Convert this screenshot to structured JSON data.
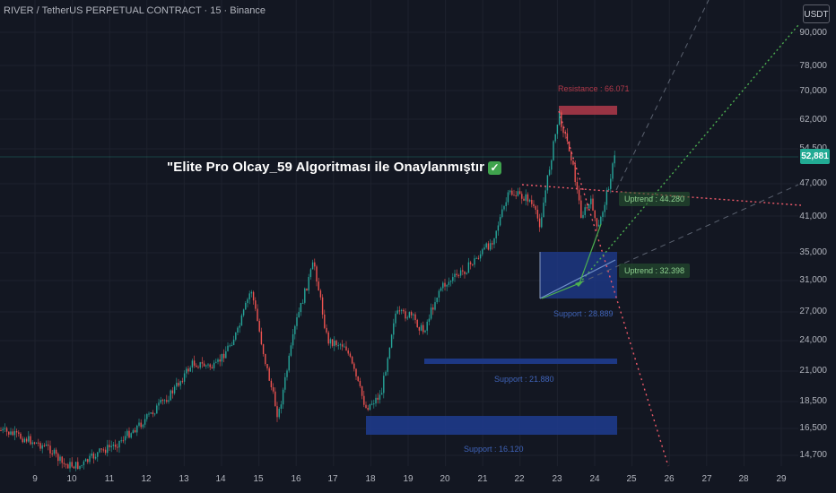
{
  "header": {
    "title": "RIVER / TetherUS PERPETUAL CONTRACT · 15 · Binance",
    "currency_button": "USDT"
  },
  "price_axis": [
    "90,000",
    "78,000",
    "70,000",
    "62,000",
    "54,500",
    "47,000",
    "41,000",
    "35,000",
    "31,000",
    "27,000",
    "24,000",
    "21,000",
    "18,500",
    "16,500",
    "14,700"
  ],
  "time_axis": [
    "9",
    "10",
    "11",
    "12",
    "13",
    "14",
    "15",
    "16",
    "17",
    "18",
    "19",
    "20",
    "21",
    "22",
    "23",
    "24",
    "25",
    "26",
    "27",
    "28",
    "29"
  ],
  "last_price": "52,881",
  "banner": {
    "text": "\"Elite Pro Olcay_59 Algoritması ile Onaylanmıştır",
    "check": "✓"
  },
  "annotations": {
    "resistance": "Resistance : 66.071",
    "uptrend_1": "Uptrend : 44.280",
    "uptrend_2": "Uptrend : 32.398",
    "support_1": "Support : 28.889",
    "support_2": "Support : 21.880",
    "support_3": "Support : 16.120"
  },
  "colors": {
    "background": "#131722",
    "up_candle": "#26a69a",
    "down_candle": "#ef5350",
    "support_zone": "#1e3a8a",
    "resistance_zone": "#b2394a",
    "uptrend_line": "#4caf50",
    "dotted_red": "#f05a6a",
    "accent": "#22ab94"
  }
}
